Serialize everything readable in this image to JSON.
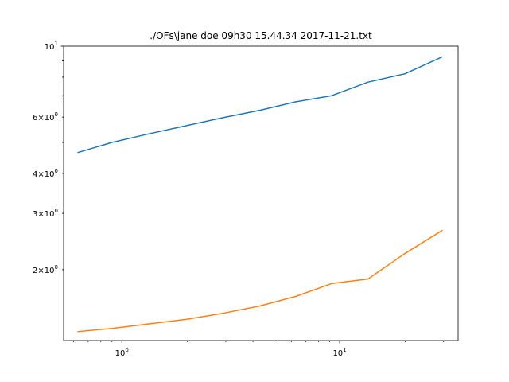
{
  "chart_data": {
    "type": "line",
    "title": "./OFs\\jane doe 09h30 15.44.34 2017-11-21.txt",
    "xlabel": "",
    "ylabel": "",
    "xscale": "log",
    "yscale": "log",
    "xlim": [
      0.54,
      35
    ],
    "ylim": [
      1.2,
      10
    ],
    "grid": false,
    "legend": "none",
    "x": [
      0.63,
      0.9,
      1.3,
      2.0,
      2.9,
      4.3,
      6.3,
      9.2,
      13.5,
      20.0,
      29.5
    ],
    "series": [
      {
        "color": "#1f77b4",
        "values": [
          4.65,
          5.0,
          5.3,
          5.65,
          5.97,
          6.3,
          6.7,
          7.0,
          7.72,
          8.2,
          9.25
        ]
      },
      {
        "color": "#ff7f0e",
        "values": [
          1.28,
          1.31,
          1.35,
          1.4,
          1.46,
          1.54,
          1.65,
          1.81,
          1.87,
          2.25,
          2.65
        ]
      }
    ],
    "y_tick_labels": [
      {
        "value": 2,
        "base": "2",
        "mult": "×",
        "ten": "10",
        "exp": "0"
      },
      {
        "value": 3,
        "base": "3",
        "mult": "×",
        "ten": "10",
        "exp": "0"
      },
      {
        "value": 4,
        "base": "4",
        "mult": "×",
        "ten": "10",
        "exp": "0"
      },
      {
        "value": 6,
        "base": "6",
        "mult": "×",
        "ten": "10",
        "exp": "0"
      },
      {
        "value": 10,
        "base": "",
        "mult": "",
        "ten": "10",
        "exp": "1"
      }
    ],
    "x_tick_labels": [
      {
        "value": 1,
        "ten": "10",
        "exp": "0"
      },
      {
        "value": 10,
        "ten": "10",
        "exp": "1"
      }
    ]
  }
}
